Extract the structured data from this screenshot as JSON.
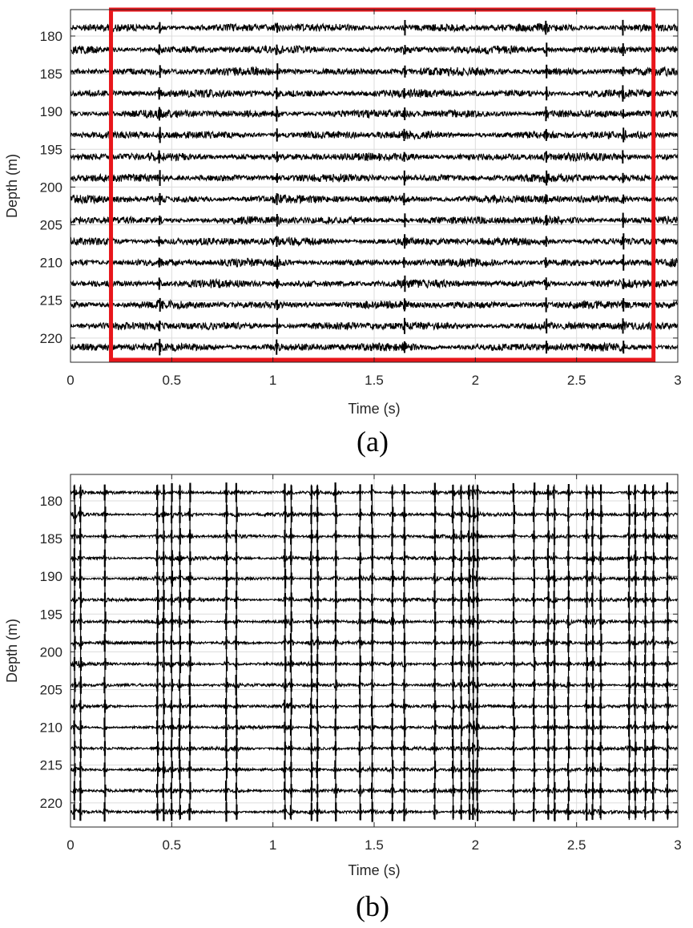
{
  "chart_data": [
    {
      "type": "line",
      "panel_label": "(a)",
      "xlabel": "Time (s)",
      "ylabel": "Depth (m)",
      "xlim": [
        0,
        3
      ],
      "ylim": [
        223.2,
        176.5
      ],
      "y_reversed": true,
      "xticks": [
        "0",
        "0.5",
        "1",
        "1.5",
        "2",
        "2.5",
        "3"
      ],
      "yticks": [
        "180",
        "185",
        "190",
        "195",
        "200",
        "205",
        "210",
        "215",
        "220"
      ],
      "grid": true,
      "trace_depths_m": [
        178.9,
        181.8,
        184.7,
        187.6,
        190.3,
        193.1,
        196.0,
        198.8,
        201.6,
        204.4,
        207.2,
        210.0,
        212.8,
        215.6,
        218.4,
        221.2
      ],
      "trace_color": "#000000",
      "event_times_s": [
        0.44,
        1.02,
        1.65,
        2.35,
        2.73
      ],
      "highlight_box": {
        "t_start_s": 0.2,
        "t_end_s": 2.88,
        "color": "#e8161b"
      }
    },
    {
      "type": "line",
      "panel_label": "(b)",
      "xlabel": "Time (s)",
      "ylabel": "Depth (m)",
      "xlim": [
        0,
        3
      ],
      "ylim": [
        223.2,
        176.5
      ],
      "y_reversed": true,
      "xticks": [
        "0",
        "0.5",
        "1",
        "1.5",
        "2",
        "2.5",
        "3"
      ],
      "yticks": [
        "180",
        "185",
        "190",
        "195",
        "200",
        "205",
        "210",
        "215",
        "220"
      ],
      "grid": true,
      "trace_depths_m": [
        178.9,
        181.8,
        184.7,
        187.6,
        190.3,
        193.1,
        196.0,
        198.8,
        201.6,
        204.4,
        207.2,
        210.0,
        212.8,
        215.6,
        218.4,
        221.2
      ],
      "trace_color": "#000000",
      "event_times_s": [
        0.02,
        0.05,
        0.17,
        0.43,
        0.46,
        0.5,
        0.54,
        0.59,
        0.77,
        0.82,
        1.06,
        1.09,
        1.19,
        1.22,
        1.31,
        1.43,
        1.49,
        1.59,
        1.65,
        1.8,
        1.89,
        1.93,
        1.97,
        1.99,
        2.01,
        2.19,
        2.29,
        2.36,
        2.39,
        2.46,
        2.55,
        2.58,
        2.62,
        2.76,
        2.79,
        2.84,
        2.88,
        2.95
      ]
    }
  ]
}
